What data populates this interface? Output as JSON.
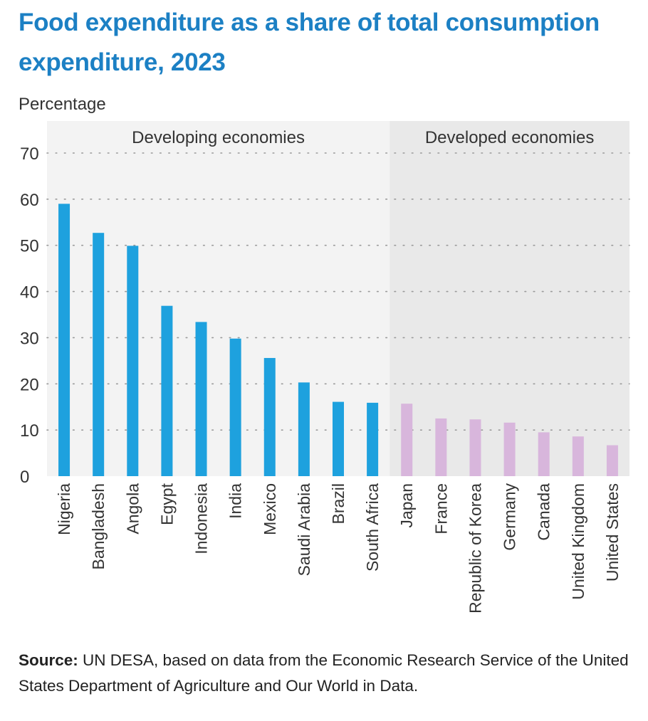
{
  "chart_data": {
    "type": "bar",
    "title": "Food expenditure as a share of total consumption expenditure, 2023",
    "ylabel": "Percentage",
    "ylim": [
      0,
      70
    ],
    "yticks": [
      0,
      10,
      20,
      30,
      40,
      50,
      60,
      70
    ],
    "grid": true,
    "groups": [
      {
        "name": "Developing economies",
        "color": "#1ea1de",
        "categories": [
          "Nigeria",
          "Bangladesh",
          "Angola",
          "Egypt",
          "Indonesia",
          "India",
          "Mexico",
          "Saudi Arabia",
          "Brazil",
          "South Africa"
        ],
        "values": [
          59.0,
          52.7,
          49.9,
          36.9,
          33.4,
          29.8,
          25.6,
          20.3,
          16.1,
          15.9
        ]
      },
      {
        "name": "Developed economies",
        "color": "#d8b6dc",
        "categories": [
          "Japan",
          "France",
          "Republic of Korea",
          "Germany",
          "Canada",
          "United Kingdom",
          "United States"
        ],
        "values": [
          15.7,
          12.5,
          12.3,
          11.6,
          9.5,
          8.6,
          6.7
        ]
      }
    ]
  },
  "colors": {
    "title": "#1c80c4",
    "panel_developing": "#f3f3f3",
    "panel_developed": "#e9e9e9",
    "gridline": "#9a9a9a",
    "text": "#333333"
  },
  "source": {
    "label": "Source:",
    "text": " UN DESA, based on data from the Economic Research Service of the United States Department of Agriculture and Our World in Data."
  }
}
